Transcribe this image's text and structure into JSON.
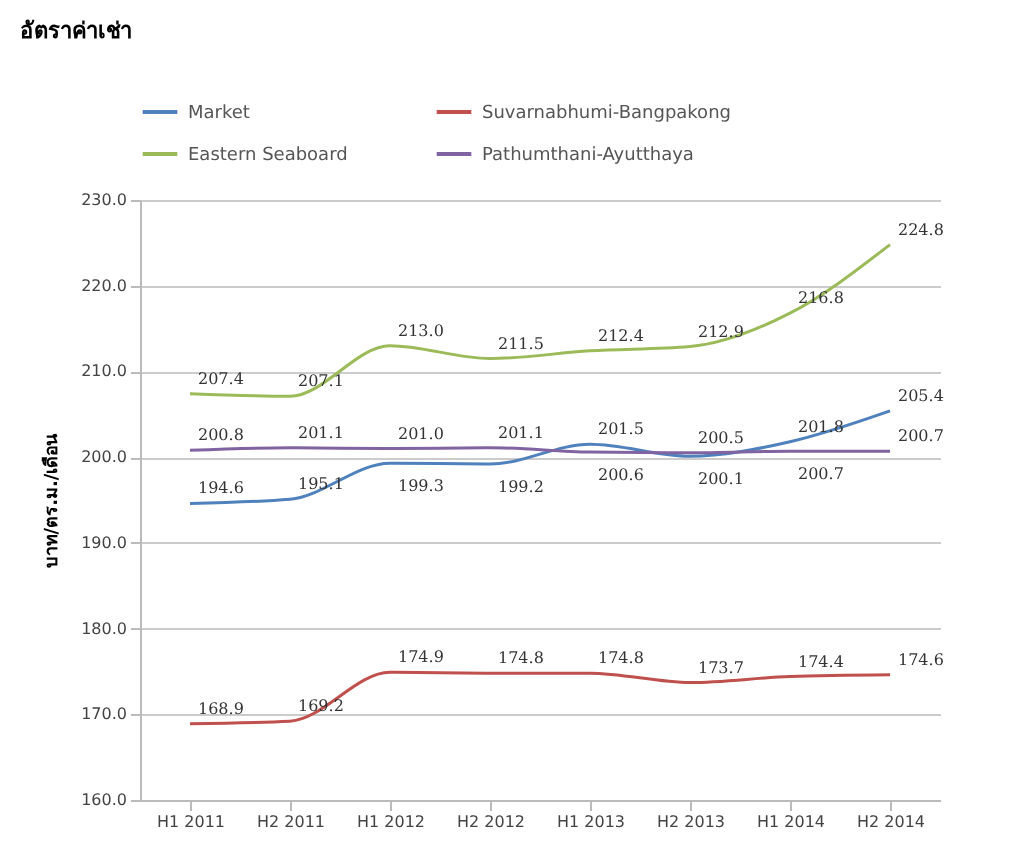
{
  "chart_data": {
    "type": "line",
    "title": "อัตราค่าเช่า",
    "ylabel": "บาท/ตร.ม./เดือน",
    "categories": [
      "H1 2011",
      "H2 2011",
      "H1 2012",
      "H2 2012",
      "H1 2013",
      "H2 2013",
      "H1 2014",
      "H2 2014"
    ],
    "series": [
      {
        "name": "Market",
        "color": "#4f81bd",
        "values": [
          194.6,
          195.1,
          199.3,
          199.2,
          201.5,
          200.1,
          201.8,
          205.4
        ],
        "value_labels": [
          "194.6",
          "195.1",
          "199.3",
          "199.2",
          "201.5",
          "200.1",
          "201.8",
          "205.4"
        ]
      },
      {
        "name": "Suvarnabhumi-Bangpakong",
        "color": "#c0504d",
        "values": [
          168.9,
          169.2,
          174.9,
          174.8,
          174.8,
          173.7,
          174.4,
          174.6
        ],
        "value_labels": [
          "168.9",
          "169.2",
          "174.9",
          "174.8",
          "174.8",
          "173.7",
          "174.4",
          "174.6"
        ]
      },
      {
        "name": "Eastern Seaboard",
        "color": "#9bbb59",
        "values": [
          207.4,
          207.1,
          213.0,
          211.5,
          212.4,
          212.9,
          216.8,
          224.8
        ],
        "value_labels": [
          "207.4",
          "207.1",
          "213.0",
          "211.5",
          "212.4",
          "212.9",
          "216.8",
          "224.8"
        ]
      },
      {
        "name": "Pathumthani-Ayutthaya",
        "color": "#8064a2",
        "values": [
          200.8,
          201.1,
          201.0,
          201.1,
          200.6,
          200.5,
          200.7,
          200.7
        ],
        "value_labels": [
          "200.8",
          "201.1",
          "201.0",
          "201.1",
          "200.6",
          "200.5",
          "200.7",
          "200.7"
        ]
      }
    ],
    "ylim": [
      160,
      230
    ],
    "yticks": [
      {
        "value": 160,
        "label": "160.0"
      },
      {
        "value": 170,
        "label": "170.0"
      },
      {
        "value": 180,
        "label": "180.0"
      },
      {
        "value": 190,
        "label": "190.0"
      },
      {
        "value": 200,
        "label": "200.0"
      },
      {
        "value": 210,
        "label": "210.0"
      },
      {
        "value": 220,
        "label": "220.0"
      },
      {
        "value": 230,
        "label": "230.0"
      }
    ],
    "grid": "y",
    "legend": "top",
    "marker": "none",
    "line_style": "solid"
  }
}
